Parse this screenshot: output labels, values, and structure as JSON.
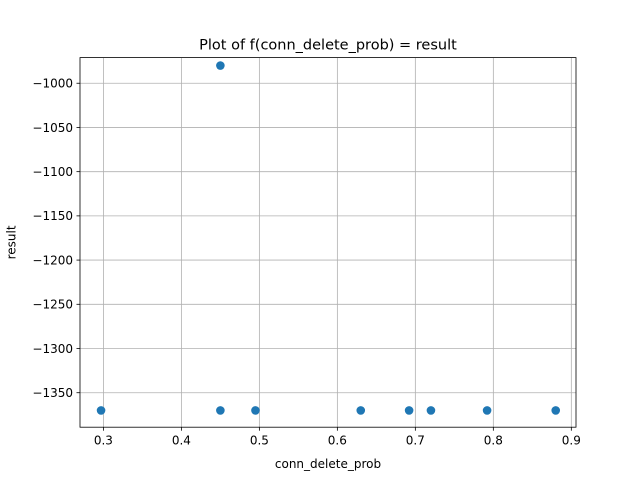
{
  "chart_data": {
    "type": "scatter",
    "title": "Plot of f(conn_delete_prob) = result",
    "xlabel": "conn_delete_prob",
    "ylabel": "result",
    "xlim": [
      0.27,
      0.906
    ],
    "ylim": [
      -1389,
      -971
    ],
    "xticks": [
      0.3,
      0.4,
      0.5,
      0.6,
      0.7,
      0.8,
      0.9
    ],
    "xtick_labels": [
      "0.3",
      "0.4",
      "0.5",
      "0.6",
      "0.7",
      "0.8",
      "0.9"
    ],
    "yticks": [
      -1000,
      -1050,
      -1100,
      -1150,
      -1200,
      -1250,
      -1300,
      -1350
    ],
    "ytick_labels": [
      "−1000",
      "−1050",
      "−1100",
      "−1150",
      "−1200",
      "−1250",
      "−1300",
      "−1350"
    ],
    "grid": true,
    "color": "#1f77b4",
    "points": [
      {
        "x": 0.297,
        "y": -1370
      },
      {
        "x": 0.45,
        "y": -980
      },
      {
        "x": 0.45,
        "y": -1370
      },
      {
        "x": 0.495,
        "y": -1370
      },
      {
        "x": 0.63,
        "y": -1370
      },
      {
        "x": 0.692,
        "y": -1370
      },
      {
        "x": 0.72,
        "y": -1370
      },
      {
        "x": 0.792,
        "y": -1370
      },
      {
        "x": 0.88,
        "y": -1370
      }
    ]
  }
}
